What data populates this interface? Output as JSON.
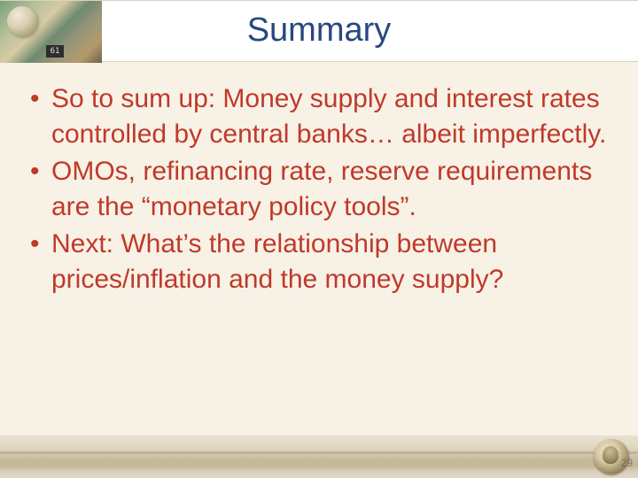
{
  "slide": {
    "title": "Summary",
    "title_color": "#29477f",
    "title_fontsize": 38,
    "bullets": [
      "So to sum up: Money supply and interest rates controlled by central banks… albeit imperfectly.",
      "OMOs, refinancing rate, reserve requirements are the “monetary policy tools”.",
      "Next: What’s the relationship between prices/inflation and the money supply?"
    ],
    "bullet_color": "#c0392b",
    "bullet_fontsize": 30,
    "bullet_lineheight": 40,
    "background_color": "#f7f2e5",
    "header_band_color": "#ffffff",
    "page_number": "29"
  }
}
